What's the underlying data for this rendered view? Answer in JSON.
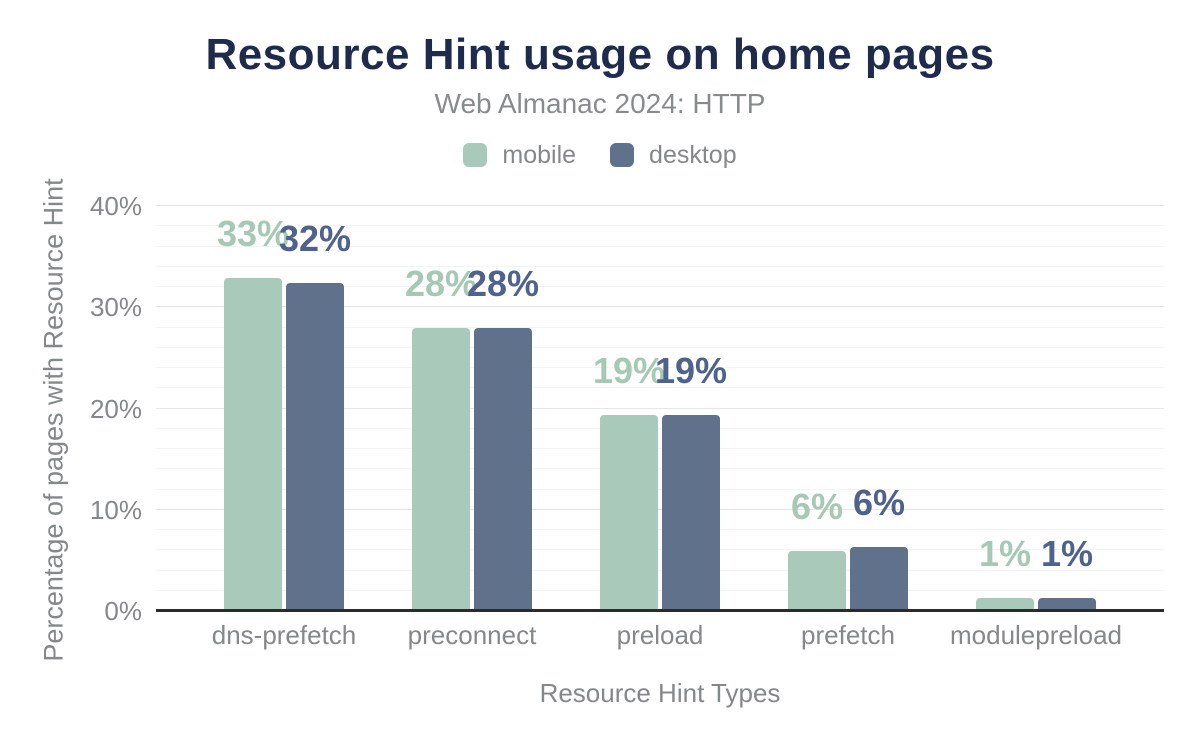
{
  "header": {
    "title": "Resource Hint usage on home pages",
    "subtitle": "Web Almanac 2024: HTTP"
  },
  "legend": [
    {
      "label": "mobile",
      "color": "#a9cabb"
    },
    {
      "label": "desktop",
      "color": "#60718c"
    }
  ],
  "chart_data": {
    "type": "bar",
    "title": "Resource Hint usage on home pages",
    "subtitle": "Web Almanac 2024: HTTP",
    "xlabel": "Resource Hint Types",
    "ylabel": "Percentage of pages with Resource Hint",
    "categories": [
      "dns-prefetch",
      "preconnect",
      "preload",
      "prefetch",
      "modulepreload"
    ],
    "series": [
      {
        "name": "mobile",
        "color": "#a9cabb",
        "label_color": "#a5c9b4",
        "values": [
          32.8,
          27.9,
          19.3,
          5.8,
          1.2
        ],
        "labels": [
          "33%",
          "28%",
          "19%",
          "6%",
          "1%"
        ]
      },
      {
        "name": "desktop",
        "color": "#60718c",
        "label_color": "#4e628b",
        "values": [
          32.3,
          27.9,
          19.3,
          6.2,
          1.2
        ],
        "labels": [
          "32%",
          "28%",
          "19%",
          "6%",
          "1%"
        ]
      }
    ],
    "ylim": [
      0,
      40
    ],
    "yticks": [
      {
        "value": 0,
        "label": "0%"
      },
      {
        "value": 10,
        "label": "10%"
      },
      {
        "value": 20,
        "label": "20%"
      },
      {
        "value": 30,
        "label": "30%"
      },
      {
        "value": 40,
        "label": "40%"
      }
    ],
    "minor_grid_step": 2,
    "major_grid_step": 10,
    "grid": true,
    "legend_position": "top"
  },
  "colors": {
    "title": "#1e2b4d",
    "text_gray": "#85888b",
    "grid_minor": "#f4f4f4",
    "grid_major": "#e6e6e6",
    "axis_line": "#2b2b2b",
    "background": "#ffffff"
  }
}
